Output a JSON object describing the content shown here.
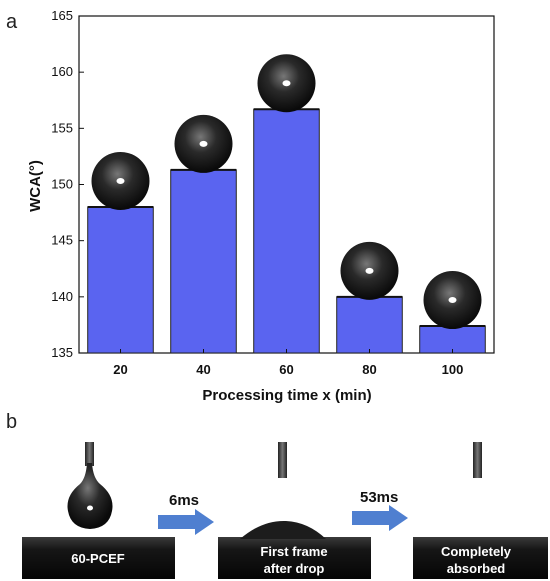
{
  "panel_a_label": "a",
  "panel_b_label": "b",
  "chart_data": {
    "type": "bar",
    "categories": [
      "20",
      "40",
      "60",
      "80",
      "100"
    ],
    "values": [
      148.0,
      151.3,
      156.7,
      140.0,
      137.4
    ],
    "ylabel": "WCA(°)",
    "xlabel": "Processing time x (min)",
    "ylim": [
      135,
      165
    ],
    "yticks": [
      135,
      140,
      145,
      150,
      155,
      160,
      165
    ],
    "bar_color": "#5a64f0",
    "grid": false,
    "legend": "none"
  },
  "sequence": {
    "frames": [
      {
        "label_lines": [
          "60-PCEF"
        ],
        "state": "droplet-on-needle"
      },
      {
        "label_lines": [
          "First frame",
          "after drop"
        ],
        "state": "spreading"
      },
      {
        "label_lines": [
          "Completely",
          "absorbed"
        ],
        "state": "absorbed"
      }
    ],
    "steps": [
      "6ms",
      "53ms"
    ],
    "arrow_color": "#4f7fd0"
  }
}
